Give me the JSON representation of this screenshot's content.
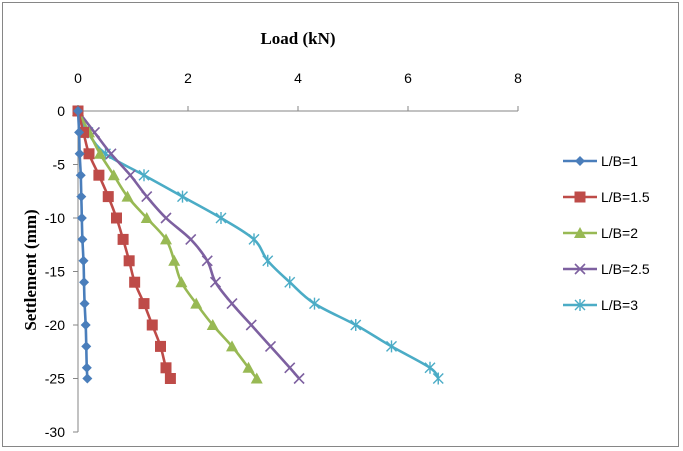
{
  "chart_data": {
    "type": "scatter",
    "x_title": "Load (kN)",
    "y_title": "Settlement (mm)",
    "xlim": [
      0,
      8
    ],
    "ylim": [
      -30,
      0
    ],
    "x_ticks": [
      "0",
      "2",
      "4",
      "6",
      "8"
    ],
    "y_ticks": [
      "0",
      "-5",
      "-10",
      "-15",
      "-20",
      "-25",
      "-30"
    ],
    "x_axis_position": "top",
    "legend_position": "right",
    "grid": false,
    "series": [
      {
        "name": "L/B=1",
        "color": "#4A7EBB",
        "marker": "diamond",
        "x": [
          0.0,
          0.02,
          0.03,
          0.05,
          0.06,
          0.07,
          0.08,
          0.1,
          0.11,
          0.12,
          0.14,
          0.15,
          0.16,
          0.17
        ],
        "y": [
          0,
          -2,
          -4,
          -6,
          -8,
          -10,
          -12,
          -14,
          -16,
          -18,
          -20,
          -22,
          -24,
          -25
        ]
      },
      {
        "name": "L/B=1.5",
        "color": "#BE4B48",
        "marker": "square",
        "x": [
          0.0,
          0.1,
          0.2,
          0.38,
          0.55,
          0.7,
          0.82,
          0.93,
          1.03,
          1.2,
          1.35,
          1.5,
          1.6,
          1.68
        ],
        "y": [
          0,
          -2,
          -4,
          -6,
          -8,
          -10,
          -12,
          -14,
          -16,
          -18,
          -20,
          -22,
          -24,
          -25
        ]
      },
      {
        "name": "L/B=2",
        "color": "#98B954",
        "marker": "triangle",
        "x": [
          0.0,
          0.2,
          0.4,
          0.65,
          0.9,
          1.25,
          1.6,
          1.75,
          1.88,
          2.15,
          2.45,
          2.8,
          3.1,
          3.25
        ],
        "y": [
          0,
          -2,
          -4,
          -6,
          -8,
          -10,
          -12,
          -14,
          -16,
          -18,
          -20,
          -22,
          -24,
          -25
        ]
      },
      {
        "name": "L/B=2.5",
        "color": "#7D60A0",
        "marker": "x",
        "x": [
          0.0,
          0.3,
          0.6,
          0.95,
          1.25,
          1.6,
          2.05,
          2.35,
          2.5,
          2.8,
          3.15,
          3.5,
          3.85,
          4.02
        ],
        "y": [
          0,
          -2,
          -4,
          -6,
          -8,
          -10,
          -12,
          -14,
          -16,
          -18,
          -20,
          -22,
          -24,
          -25
        ]
      },
      {
        "name": "L/B=3",
        "color": "#4BACC6",
        "marker": "star",
        "x": [
          0.0,
          0.18,
          0.5,
          1.2,
          1.9,
          2.6,
          3.2,
          3.45,
          3.85,
          4.3,
          5.05,
          5.7,
          6.4,
          6.55
        ],
        "y": [
          0,
          -2,
          -4,
          -6,
          -8,
          -10,
          -12,
          -14,
          -16,
          -18,
          -20,
          -22,
          -24,
          -25
        ]
      }
    ]
  }
}
